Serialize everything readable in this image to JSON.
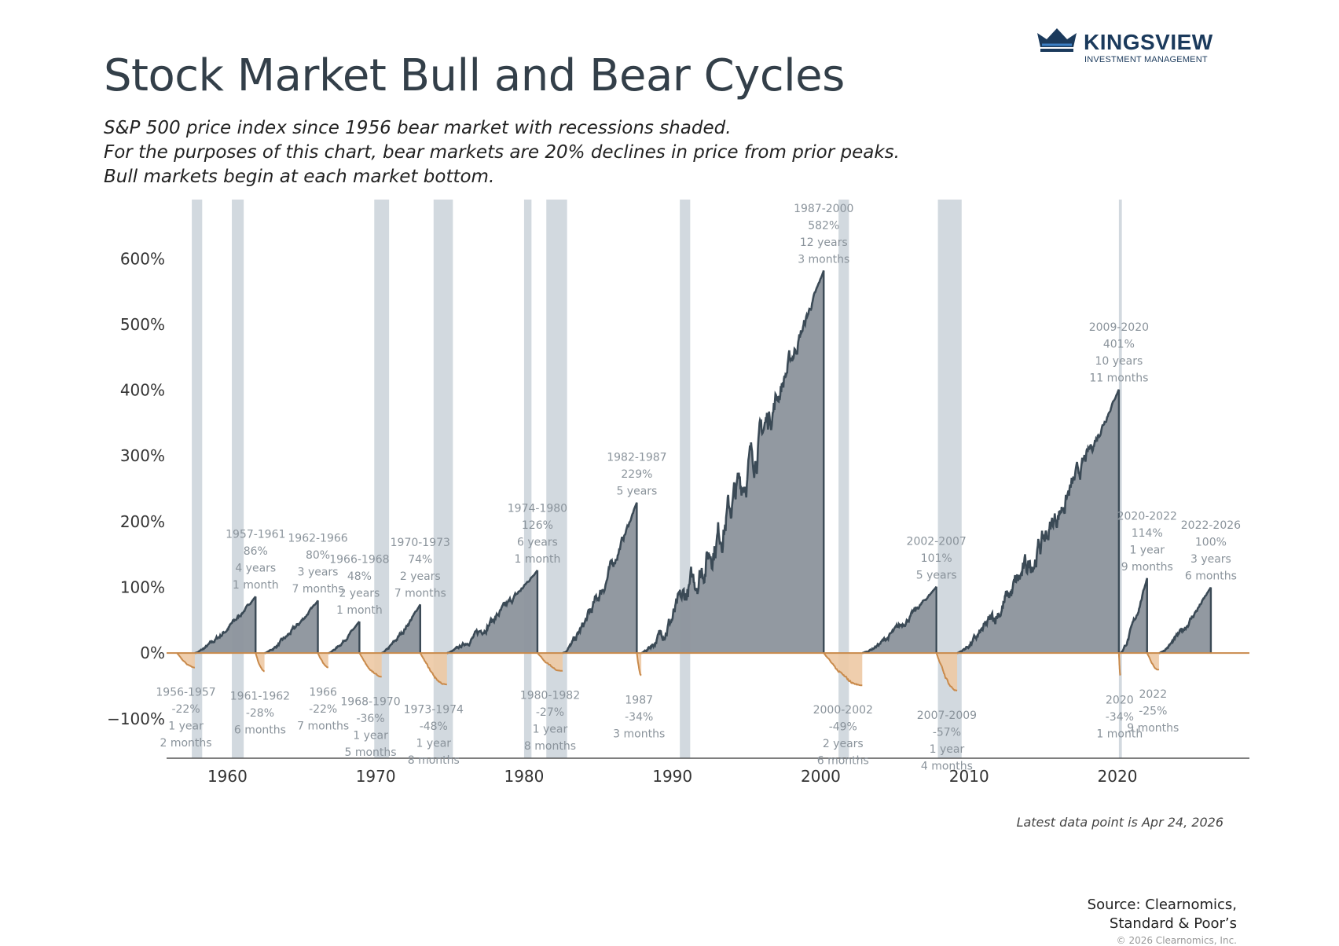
{
  "brand": {
    "name": "KINGSVIEW",
    "sub": "INVESTMENT MANAGEMENT",
    "icon": "crown-logo-icon"
  },
  "title": "Stock Market Bull and Bear Cycles",
  "subtitle": [
    "S&P 500 price index since 1956 bear market with recessions shaded.",
    "For the purposes of this chart, bear markets are 20% declines in price from prior peaks.",
    "Bull markets begin at each market bottom."
  ],
  "latest_note": "Latest data point is Apr 24, 2026",
  "source": [
    "Source: Clearnomics,",
    "Standard & Poor’s"
  ],
  "copyright": "© 2026 Clearnomics, Inc.",
  "colors": {
    "bull": "#3b4a56",
    "bull_fill": "#8c949c",
    "bear": "#c98a4b",
    "bear_fill": "#edc9a4",
    "recession": "#d2d9df",
    "title": "#333f49",
    "brand": "#1b3a5c"
  },
  "chart_data": {
    "type": "area",
    "x_axis": {
      "ticks": [
        1960,
        1970,
        1980,
        1990,
        2000,
        2010,
        2020
      ],
      "range": [
        1955.9,
        2028.9
      ]
    },
    "y_axis": {
      "ticks": [
        -100,
        0,
        100,
        200,
        300,
        400,
        500,
        600
      ],
      "tick_labels": [
        "−100%",
        "0%",
        "100%",
        "200%",
        "300%",
        "400%",
        "500%",
        "600%"
      ],
      "range": [
        -160,
        690
      ]
    },
    "recessions": [
      [
        1957.6,
        1958.3
      ],
      [
        1960.3,
        1961.1
      ],
      [
        1969.9,
        1970.9
      ],
      [
        1973.9,
        1975.2
      ],
      [
        1980.0,
        1980.5
      ],
      [
        1981.5,
        1982.9
      ],
      [
        1990.5,
        1991.2
      ],
      [
        2001.2,
        2001.9
      ],
      [
        2007.9,
        2009.5
      ],
      [
        2020.1,
        2020.3
      ]
    ],
    "bull_markets": [
      {
        "start": 1957.8,
        "end": 1961.9,
        "pct": 86,
        "label": [
          "1957-1961",
          "86%",
          "4 years",
          "1 month"
        ]
      },
      {
        "start": 1962.5,
        "end": 1966.1,
        "pct": 80,
        "label": [
          "1962-1966",
          "80%",
          "3 years",
          "7 months"
        ]
      },
      {
        "start": 1966.8,
        "end": 1968.9,
        "pct": 48,
        "label": [
          "1966-1968",
          "48%",
          "2 years",
          "1 month"
        ]
      },
      {
        "start": 1970.4,
        "end": 1973.0,
        "pct": 74,
        "label": [
          "1970-1973",
          "74%",
          "2 years",
          "7 months"
        ]
      },
      {
        "start": 1974.8,
        "end": 1980.9,
        "pct": 126,
        "label": [
          "1974-1980",
          "126%",
          "6 years",
          "1 month"
        ]
      },
      {
        "start": 1982.6,
        "end": 1987.6,
        "pct": 229,
        "label": [
          "1982-1987",
          "229%",
          "5 years"
        ]
      },
      {
        "start": 1987.9,
        "end": 2000.2,
        "pct": 582,
        "label": [
          "1987-2000",
          "582%",
          "12 years",
          "3 months"
        ]
      },
      {
        "start": 2002.8,
        "end": 2007.8,
        "pct": 101,
        "label": [
          "2002-2007",
          "101%",
          "5 years"
        ]
      },
      {
        "start": 2009.2,
        "end": 2020.1,
        "pct": 401,
        "label": [
          "2009-2020",
          "401%",
          "10 years",
          "11 months"
        ]
      },
      {
        "start": 2020.2,
        "end": 2022.0,
        "pct": 114,
        "label": [
          "2020-2022",
          "114%",
          "1 year",
          "9 months"
        ]
      },
      {
        "start": 2022.8,
        "end": 2026.3,
        "pct": 100,
        "label": [
          "2022-2026",
          "100%",
          "3 years",
          "6 months"
        ]
      }
    ],
    "bear_markets": [
      {
        "start": 1956.6,
        "end": 1957.8,
        "pct": -22,
        "label": [
          "1956-1957",
          "-22%",
          "1 year",
          "2 months"
        ]
      },
      {
        "start": 1961.9,
        "end": 1962.5,
        "pct": -28,
        "label": [
          "1961-1962",
          "-28%",
          "6 months"
        ]
      },
      {
        "start": 1966.1,
        "end": 1966.8,
        "pct": -22,
        "label": [
          "1966",
          "-22%",
          "7 months"
        ]
      },
      {
        "start": 1968.9,
        "end": 1970.4,
        "pct": -36,
        "label": [
          "1968-1970",
          "-36%",
          "1 year",
          "5 months"
        ]
      },
      {
        "start": 1973.0,
        "end": 1974.8,
        "pct": -48,
        "label": [
          "1973-1974",
          "-48%",
          "1 year",
          "8 months"
        ]
      },
      {
        "start": 1980.9,
        "end": 1982.6,
        "pct": -27,
        "label": [
          "1980-1982",
          "-27%",
          "1 year",
          "8 months"
        ]
      },
      {
        "start": 1987.6,
        "end": 1987.9,
        "pct": -34,
        "label": [
          "1987",
          "-34%",
          "3 months"
        ]
      },
      {
        "start": 2000.2,
        "end": 2002.8,
        "pct": -49,
        "label": [
          "2000-2002",
          "-49%",
          "2 years",
          "6 months"
        ]
      },
      {
        "start": 2007.8,
        "end": 2009.2,
        "pct": -57,
        "label": [
          "2007-2009",
          "-57%",
          "1 year",
          "4 months"
        ]
      },
      {
        "start": 2020.1,
        "end": 2020.2,
        "pct": -34,
        "label": [
          "2020",
          "-34%",
          "1 month"
        ]
      },
      {
        "start": 2022.0,
        "end": 2022.8,
        "pct": -25,
        "label": [
          "2022",
          "-25%",
          "9 months"
        ]
      }
    ]
  }
}
